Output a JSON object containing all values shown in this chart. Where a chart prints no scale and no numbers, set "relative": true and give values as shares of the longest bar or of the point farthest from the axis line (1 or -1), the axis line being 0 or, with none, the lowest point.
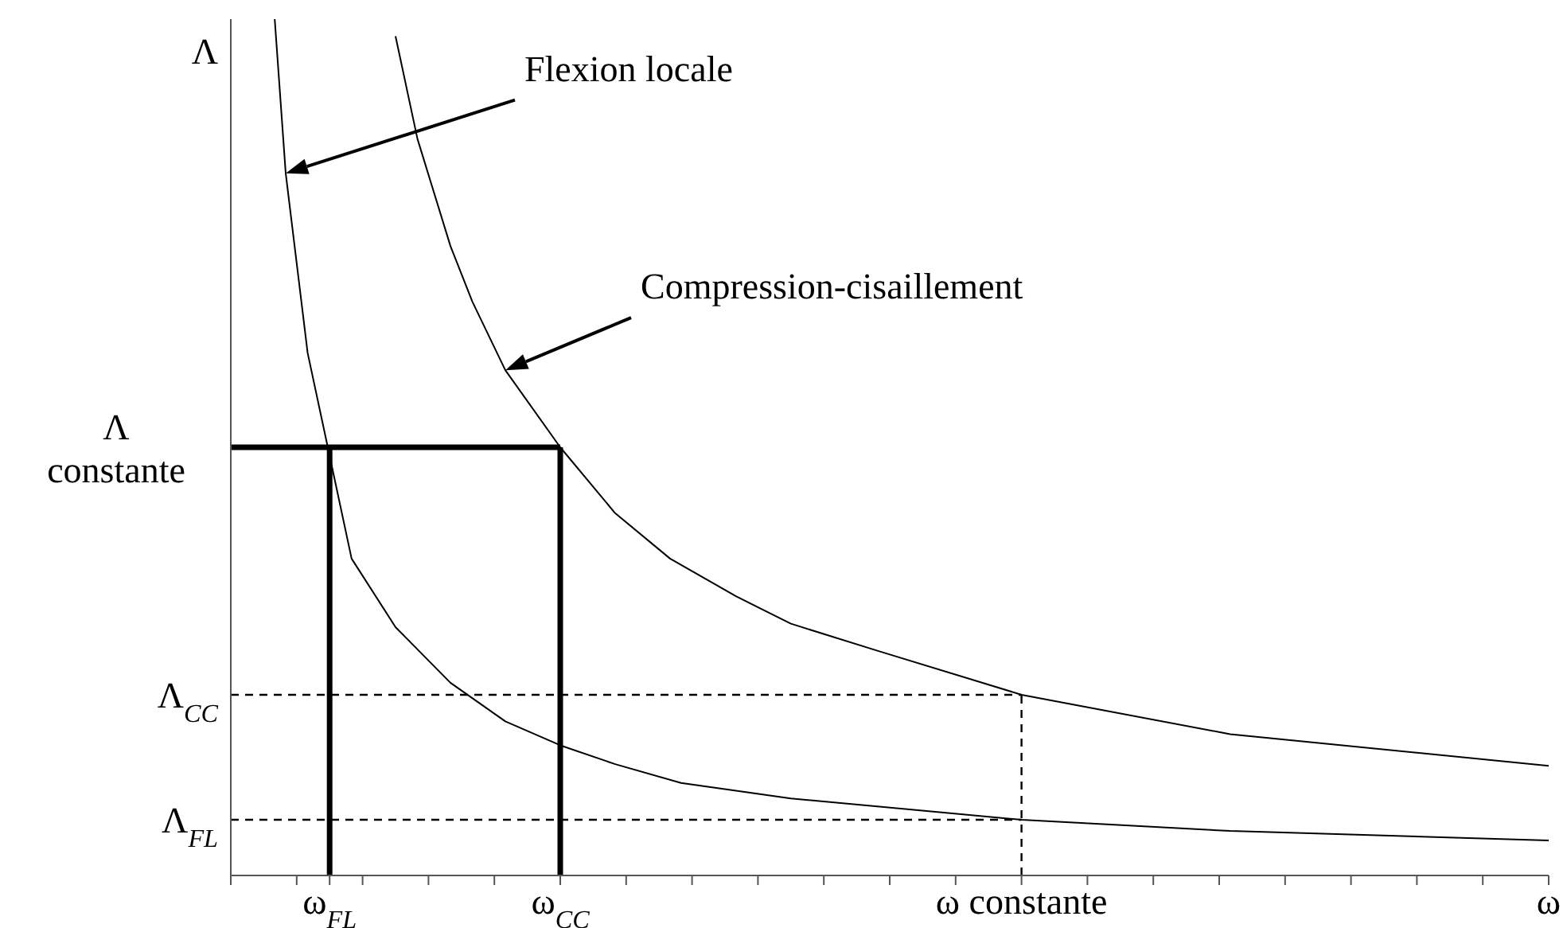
{
  "chart_data": {
    "type": "line",
    "relative": true,
    "ylabel": "Λ",
    "categories": [
      null,
      null,
      null,
      null,
      null,
      null,
      null,
      null,
      null,
      "ω$_{FL}$",
      null,
      null,
      null,
      null,
      null,
      null,
      null,
      null,
      null,
      null,
      null,
      null,
      null,
      null,
      null,
      null,
      null,
      null,
      null,
      null,
      "ω$_{CC}$",
      null,
      null,
      null,
      null,
      null,
      null,
      null,
      null,
      null,
      null,
      null,
      null,
      null,
      null,
      null,
      null,
      null,
      null,
      null,
      null,
      null,
      null,
      null,
      null,
      null,
      null,
      null,
      null,
      null,
      null,
      null,
      null,
      null,
      null,
      null,
      null,
      null,
      null,
      null,
      null,
      null,
      "ω constante",
      null,
      null,
      null,
      null,
      null,
      null,
      null,
      null,
      null,
      null,
      null,
      null,
      null,
      null,
      null,
      null,
      null,
      null,
      null,
      null,
      null,
      null,
      null,
      null,
      null,
      null,
      null,
      null,
      null,
      null,
      null,
      null,
      null,
      null,
      null,
      null,
      null,
      null,
      null,
      null,
      null,
      null,
      null,
      null,
      null,
      null,
      null,
      "ω"
    ],
    "series": [
      {
        "color": "#000000",
        "values": [
          null,
          null,
          null,
          null,
          1,
          0.82,
          null,
          0.61,
          null,
          0.49,
          null,
          0.37,
          null,
          null,
          null,
          0.29,
          null,
          null,
          null,
          null,
          0.225,
          null,
          null,
          null,
          null,
          0.18,
          null,
          null,
          null,
          null,
          0.152,
          null,
          null,
          null,
          null,
          0.13,
          null,
          null,
          null,
          null,
          null,
          0.108,
          null,
          null,
          null,
          null,
          null,
          null,
          null,
          null,
          null,
          0.09,
          null,
          null,
          null,
          null,
          null,
          null,
          null,
          null,
          null,
          null,
          null,
          null,
          null,
          null,
          null,
          null,
          null,
          null,
          null,
          null,
          0.065,
          null,
          null,
          null,
          null,
          null,
          null,
          null,
          null,
          null,
          null,
          null,
          null,
          null,
          null,
          null,
          null,
          null,
          null,
          0.052,
          null,
          null,
          null,
          null,
          null,
          null,
          null,
          null,
          null,
          null,
          null,
          null,
          null,
          null,
          null,
          null,
          null,
          null,
          null,
          null,
          null,
          null,
          null,
          null,
          null,
          null,
          null,
          null,
          0.041
        ]
      },
      {
        "color": "#000000",
        "values": [
          null,
          null,
          null,
          null,
          null,
          null,
          null,
          null,
          null,
          null,
          null,
          null,
          null,
          null,
          null,
          0.98,
          null,
          0.86,
          null,
          null,
          0.735,
          null,
          0.67,
          null,
          null,
          0.59,
          null,
          null,
          null,
          null,
          0.5,
          null,
          null,
          null,
          null,
          0.423,
          null,
          null,
          null,
          null,
          0.37,
          null,
          null,
          null,
          null,
          null,
          0.326,
          null,
          null,
          null,
          null,
          0.294,
          null,
          null,
          null,
          null,
          null,
          null,
          null,
          0.262,
          null,
          null,
          null,
          null,
          null,
          null,
          null,
          null,
          null,
          null,
          null,
          null,
          0.211,
          null,
          null,
          null,
          null,
          null,
          null,
          null,
          null,
          null,
          null,
          null,
          null,
          null,
          null,
          null,
          null,
          null,
          null,
          0.165,
          null,
          null,
          null,
          null,
          null,
          null,
          null,
          null,
          null,
          null,
          null,
          null,
          null,
          null,
          null,
          null,
          null,
          null,
          null,
          null,
          null,
          null,
          null,
          null,
          null,
          null,
          null,
          null,
          0.128
        ]
      }
    ],
    "ref_lines": [
      {
        "axis": "y",
        "value": 0.5,
        "label": "Λ constante",
        "line_style": "solid",
        "color": "#000000"
      },
      {
        "axis": "x",
        "value": "ω$_{FL}$",
        "line_style": "solid",
        "color": "#000000"
      },
      {
        "axis": "x",
        "value": "ω$_{CC}$",
        "line_style": "solid",
        "color": "#000000"
      },
      {
        "axis": "y",
        "value": 0.211,
        "label": "Λ$_{CC}$",
        "line_style": "dashed",
        "color": "#000000"
      },
      {
        "axis": "y",
        "value": 0.065,
        "label": "Λ$_{FL}$",
        "line_style": "dashed",
        "color": "#000000"
      },
      {
        "axis": "x",
        "value": "ω constante",
        "line_style": "dashed",
        "color": "#000000"
      }
    ],
    "annotations": [
      "Flexion locale",
      "Compression-cisaillement"
    ],
    "marker": "none",
    "line_style": "solid"
  }
}
